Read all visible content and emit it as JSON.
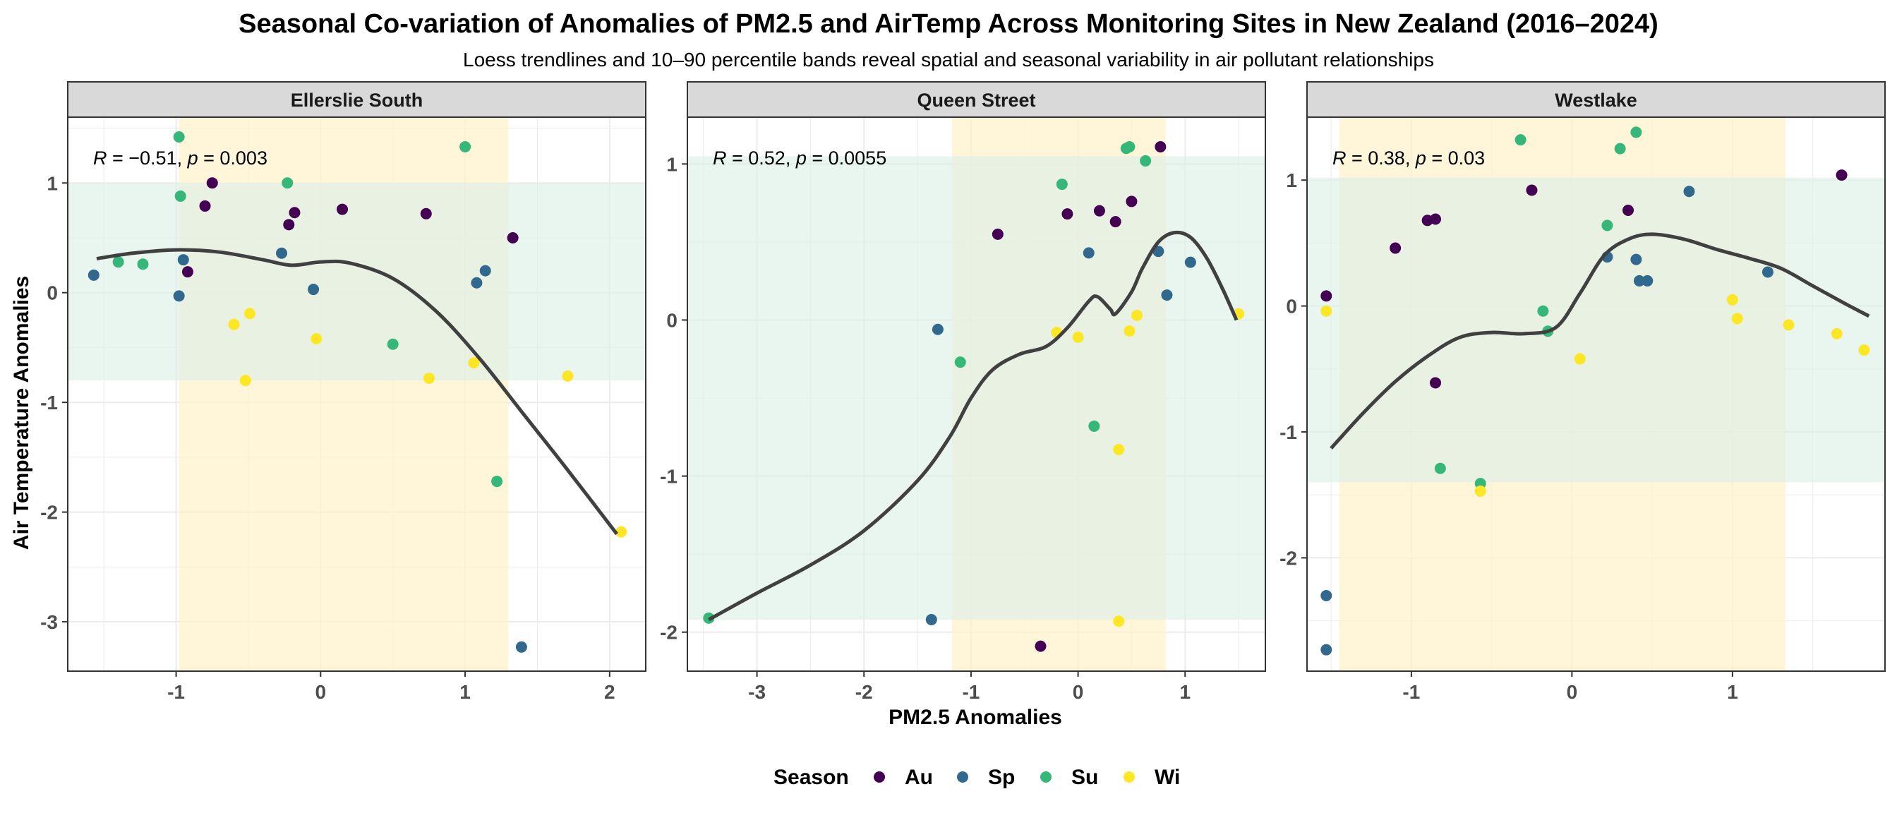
{
  "chart_data": {
    "type": "scatter",
    "title": "Seasonal Co-variation of Anomalies of PM2.5 and AirTemp Across Monitoring Sites in New Zealand (2016–2024)",
    "subtitle": "Loess trendlines and 10–90 percentile bands reveal spatial and seasonal variability in air pollutant relationships",
    "xlabel": "PM2.5 Anomalies",
    "ylabel": "Air Temperature Anomalies",
    "legend": {
      "title": "Season",
      "placement": "bottom",
      "entries": [
        {
          "key": "Au",
          "label": "Au",
          "color": "#440154"
        },
        {
          "key": "Sp",
          "label": "Sp",
          "color": "#31688E"
        },
        {
          "key": "Su",
          "label": "Su",
          "color": "#35B779"
        },
        {
          "key": "Wi",
          "label": "Wi",
          "color": "#FDE725"
        }
      ]
    },
    "colors": {
      "trend_line": "#404040",
      "x_band": "#FFF2CC",
      "y_band": "#DDF0E6",
      "strip": "#D9D9D9",
      "grid": "#EBEBEB"
    },
    "grid": true,
    "panels": [
      {
        "name": "Ellerslie South",
        "stat": {
          "r": "−0.51",
          "p": "0.003"
        },
        "xlim": [
          -1.75,
          2.25
        ],
        "ylim": [
          -3.45,
          1.6
        ],
        "x_ticks": [
          -1,
          0,
          1,
          2
        ],
        "y_ticks": [
          -3,
          -2,
          -1,
          0,
          1
        ],
        "x_band": [
          -0.98,
          1.3
        ],
        "y_band": [
          -0.8,
          1.0
        ],
        "trend": [
          [
            -1.55,
            0.31
          ],
          [
            -1.3,
            0.36
          ],
          [
            -1.0,
            0.39
          ],
          [
            -0.7,
            0.37
          ],
          [
            -0.4,
            0.3
          ],
          [
            -0.2,
            0.25
          ],
          [
            0.0,
            0.28
          ],
          [
            0.2,
            0.27
          ],
          [
            0.5,
            0.13
          ],
          [
            0.8,
            -0.17
          ],
          [
            1.1,
            -0.6
          ],
          [
            1.4,
            -1.1
          ],
          [
            1.7,
            -1.6
          ],
          [
            2.05,
            -2.2
          ]
        ],
        "points": [
          {
            "x": -1.57,
            "y": 0.16,
            "season": "Sp"
          },
          {
            "x": -1.4,
            "y": 0.28,
            "season": "Su"
          },
          {
            "x": -1.23,
            "y": 0.26,
            "season": "Su"
          },
          {
            "x": -0.98,
            "y": 1.42,
            "season": "Su"
          },
          {
            "x": -0.97,
            "y": 0.88,
            "season": "Su"
          },
          {
            "x": -0.75,
            "y": 1.0,
            "season": "Au"
          },
          {
            "x": -0.8,
            "y": 0.79,
            "season": "Au"
          },
          {
            "x": -0.95,
            "y": 0.3,
            "season": "Sp"
          },
          {
            "x": -0.92,
            "y": 0.19,
            "season": "Au"
          },
          {
            "x": -0.98,
            "y": -0.03,
            "season": "Sp"
          },
          {
            "x": -0.6,
            "y": -0.29,
            "season": "Wi"
          },
          {
            "x": -0.49,
            "y": -0.19,
            "season": "Wi"
          },
          {
            "x": -0.52,
            "y": -0.8,
            "season": "Wi"
          },
          {
            "x": -0.23,
            "y": 1.0,
            "season": "Su"
          },
          {
            "x": -0.18,
            "y": 0.73,
            "season": "Au"
          },
          {
            "x": -0.22,
            "y": 0.62,
            "season": "Au"
          },
          {
            "x": -0.27,
            "y": 0.36,
            "season": "Sp"
          },
          {
            "x": 0.15,
            "y": 0.76,
            "season": "Au"
          },
          {
            "x": -0.05,
            "y": 0.03,
            "season": "Sp"
          },
          {
            "x": -0.03,
            "y": -0.42,
            "season": "Wi"
          },
          {
            "x": 0.5,
            "y": -0.47,
            "season": "Su"
          },
          {
            "x": 0.73,
            "y": 0.72,
            "season": "Au"
          },
          {
            "x": 0.75,
            "y": -0.78,
            "season": "Wi"
          },
          {
            "x": 1.0,
            "y": 1.33,
            "season": "Su"
          },
          {
            "x": 1.06,
            "y": -0.64,
            "season": "Wi"
          },
          {
            "x": 1.08,
            "y": 0.09,
            "season": "Sp"
          },
          {
            "x": 1.14,
            "y": 0.2,
            "season": "Sp"
          },
          {
            "x": 1.22,
            "y": -1.72,
            "season": "Su"
          },
          {
            "x": 1.33,
            "y": 0.5,
            "season": "Au"
          },
          {
            "x": 1.39,
            "y": -3.23,
            "season": "Sp"
          },
          {
            "x": 1.71,
            "y": -0.76,
            "season": "Wi"
          },
          {
            "x": 2.08,
            "y": -2.18,
            "season": "Wi"
          }
        ]
      },
      {
        "name": "Queen Street",
        "stat": {
          "r": "0.52",
          "p": "0.0055"
        },
        "xlim": [
          -3.65,
          1.75
        ],
        "ylim": [
          -2.25,
          1.3
        ],
        "x_ticks": [
          -3,
          -2,
          -1,
          0,
          1
        ],
        "y_ticks": [
          -2,
          -1,
          0,
          1
        ],
        "x_band": [
          -1.18,
          0.82
        ],
        "y_band": [
          -1.92,
          1.05
        ],
        "trend": [
          [
            -3.45,
            -1.92
          ],
          [
            -3.0,
            -1.75
          ],
          [
            -2.5,
            -1.57
          ],
          [
            -2.0,
            -1.35
          ],
          [
            -1.5,
            -1.03
          ],
          [
            -1.2,
            -0.75
          ],
          [
            -1.0,
            -0.5
          ],
          [
            -0.8,
            -0.32
          ],
          [
            -0.55,
            -0.22
          ],
          [
            -0.3,
            -0.17
          ],
          [
            -0.1,
            -0.05
          ],
          [
            0.1,
            0.12
          ],
          [
            0.18,
            0.15
          ],
          [
            0.3,
            0.07
          ],
          [
            0.35,
            0.04
          ],
          [
            0.5,
            0.18
          ],
          [
            0.6,
            0.33
          ],
          [
            0.75,
            0.5
          ],
          [
            0.9,
            0.56
          ],
          [
            1.05,
            0.53
          ],
          [
            1.2,
            0.4
          ],
          [
            1.35,
            0.2
          ],
          [
            1.48,
            0.0
          ]
        ],
        "points": [
          {
            "x": -3.45,
            "y": -1.91,
            "season": "Su"
          },
          {
            "x": -1.37,
            "y": -1.92,
            "season": "Sp"
          },
          {
            "x": -1.31,
            "y": -0.06,
            "season": "Sp"
          },
          {
            "x": -1.1,
            "y": -0.27,
            "season": "Su"
          },
          {
            "x": -0.75,
            "y": 0.55,
            "season": "Au"
          },
          {
            "x": -0.35,
            "y": -2.09,
            "season": "Au"
          },
          {
            "x": -0.2,
            "y": -0.08,
            "season": "Wi"
          },
          {
            "x": -0.15,
            "y": 0.87,
            "season": "Su"
          },
          {
            "x": -0.1,
            "y": 0.68,
            "season": "Au"
          },
          {
            "x": 0.0,
            "y": -0.11,
            "season": "Wi"
          },
          {
            "x": 0.1,
            "y": 0.43,
            "season": "Sp"
          },
          {
            "x": 0.15,
            "y": -0.68,
            "season": "Su"
          },
          {
            "x": 0.2,
            "y": 0.7,
            "season": "Au"
          },
          {
            "x": 0.35,
            "y": 0.63,
            "season": "Au"
          },
          {
            "x": 0.38,
            "y": -0.83,
            "season": "Wi"
          },
          {
            "x": 0.38,
            "y": -1.93,
            "season": "Wi"
          },
          {
            "x": 0.45,
            "y": 1.1,
            "season": "Su"
          },
          {
            "x": 0.48,
            "y": 1.11,
            "season": "Su"
          },
          {
            "x": 0.48,
            "y": -0.07,
            "season": "Wi"
          },
          {
            "x": 0.5,
            "y": 0.76,
            "season": "Au"
          },
          {
            "x": 0.55,
            "y": 0.03,
            "season": "Wi"
          },
          {
            "x": 0.63,
            "y": 1.02,
            "season": "Su"
          },
          {
            "x": 0.75,
            "y": 0.44,
            "season": "Sp"
          },
          {
            "x": 0.77,
            "y": 1.11,
            "season": "Au"
          },
          {
            "x": 0.83,
            "y": 0.16,
            "season": "Sp"
          },
          {
            "x": 1.05,
            "y": 0.37,
            "season": "Sp"
          },
          {
            "x": 1.5,
            "y": 0.04,
            "season": "Wi"
          }
        ]
      },
      {
        "name": "Westlake",
        "stat": {
          "r": "0.38",
          "p": "0.03"
        },
        "xlim": [
          -1.65,
          1.95
        ],
        "ylim": [
          -2.9,
          1.5
        ],
        "x_ticks": [
          -1,
          0,
          1
        ],
        "y_ticks": [
          -2,
          -1,
          0,
          1
        ],
        "x_band": [
          -1.45,
          1.33
        ],
        "y_band": [
          -1.4,
          1.02
        ],
        "trend": [
          [
            -1.5,
            -1.13
          ],
          [
            -1.3,
            -0.85
          ],
          [
            -1.1,
            -0.6
          ],
          [
            -0.9,
            -0.4
          ],
          [
            -0.7,
            -0.25
          ],
          [
            -0.5,
            -0.21
          ],
          [
            -0.3,
            -0.22
          ],
          [
            -0.1,
            -0.17
          ],
          [
            0.05,
            0.1
          ],
          [
            0.2,
            0.4
          ],
          [
            0.35,
            0.53
          ],
          [
            0.5,
            0.57
          ],
          [
            0.7,
            0.53
          ],
          [
            0.9,
            0.45
          ],
          [
            1.1,
            0.38
          ],
          [
            1.3,
            0.3
          ],
          [
            1.5,
            0.16
          ],
          [
            1.7,
            0.02
          ],
          [
            1.85,
            -0.08
          ]
        ],
        "points": [
          {
            "x": -1.53,
            "y": 0.08,
            "season": "Au"
          },
          {
            "x": -1.53,
            "y": -0.04,
            "season": "Wi"
          },
          {
            "x": -1.53,
            "y": -2.3,
            "season": "Sp"
          },
          {
            "x": -1.53,
            "y": -2.73,
            "season": "Sp"
          },
          {
            "x": -1.1,
            "y": 0.46,
            "season": "Au"
          },
          {
            "x": -0.9,
            "y": 0.68,
            "season": "Au"
          },
          {
            "x": -0.85,
            "y": 0.69,
            "season": "Au"
          },
          {
            "x": -0.85,
            "y": -0.61,
            "season": "Au"
          },
          {
            "x": -0.82,
            "y": -1.29,
            "season": "Su"
          },
          {
            "x": -0.57,
            "y": -1.41,
            "season": "Su"
          },
          {
            "x": -0.57,
            "y": -1.47,
            "season": "Wi"
          },
          {
            "x": -0.32,
            "y": 1.32,
            "season": "Su"
          },
          {
            "x": -0.25,
            "y": 0.92,
            "season": "Au"
          },
          {
            "x": -0.18,
            "y": -0.04,
            "season": "Su"
          },
          {
            "x": -0.15,
            "y": -0.2,
            "season": "Su"
          },
          {
            "x": 0.05,
            "y": -0.42,
            "season": "Wi"
          },
          {
            "x": 0.22,
            "y": 0.64,
            "season": "Su"
          },
          {
            "x": 0.22,
            "y": 0.39,
            "season": "Sp"
          },
          {
            "x": 0.3,
            "y": 1.25,
            "season": "Su"
          },
          {
            "x": 0.35,
            "y": 0.76,
            "season": "Au"
          },
          {
            "x": 0.4,
            "y": 1.38,
            "season": "Su"
          },
          {
            "x": 0.4,
            "y": 0.37,
            "season": "Sp"
          },
          {
            "x": 0.42,
            "y": 0.2,
            "season": "Sp"
          },
          {
            "x": 0.47,
            "y": 0.2,
            "season": "Sp"
          },
          {
            "x": 0.73,
            "y": 0.91,
            "season": "Sp"
          },
          {
            "x": 1.0,
            "y": 0.05,
            "season": "Wi"
          },
          {
            "x": 1.03,
            "y": -0.1,
            "season": "Wi"
          },
          {
            "x": 1.22,
            "y": 0.27,
            "season": "Sp"
          },
          {
            "x": 1.35,
            "y": -0.15,
            "season": "Wi"
          },
          {
            "x": 1.65,
            "y": -0.22,
            "season": "Wi"
          },
          {
            "x": 1.68,
            "y": 1.04,
            "season": "Au"
          },
          {
            "x": 1.82,
            "y": -0.35,
            "season": "Wi"
          }
        ]
      }
    ]
  }
}
